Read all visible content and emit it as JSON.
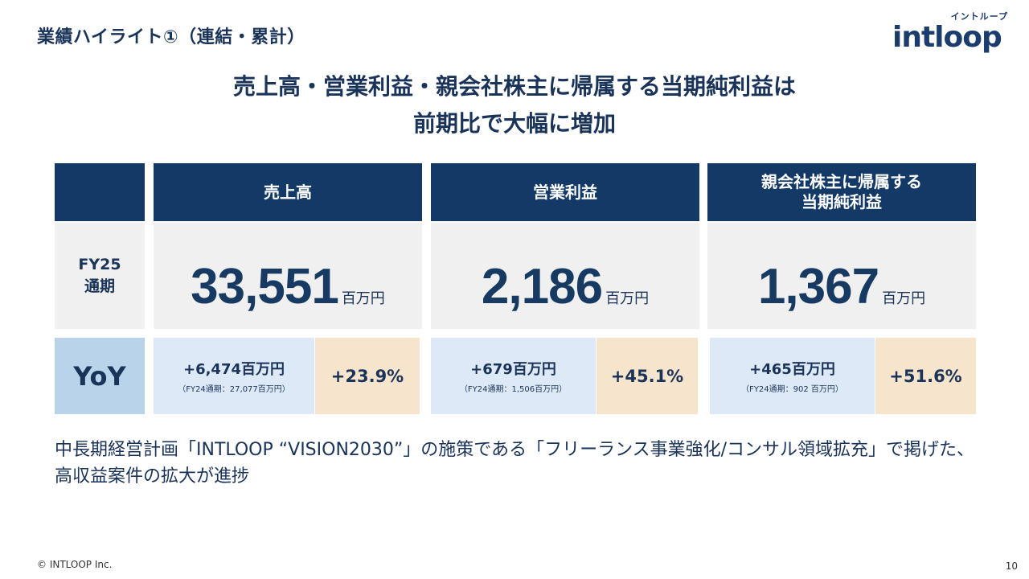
{
  "header": {
    "title": "業績ハイライト①（連結・累計）"
  },
  "logo": {
    "kana": "イントループ",
    "word": "intloop"
  },
  "headline": {
    "line1": "売上高・営業利益・親会社株主に帰属する当期純利益は",
    "line2": "前期比で大幅に増加"
  },
  "table": {
    "columns": [
      {
        "header": "売上高",
        "value": "33,551",
        "unit": "百万円",
        "diff": "+6,474百万円",
        "prior": "（FY24通期：27,077百万円）",
        "pct": "+23.9%"
      },
      {
        "header": "営業利益",
        "value": "2,186",
        "unit": "百万円",
        "diff": "+679百万円",
        "prior": "（FY24通期：1,506百万円）",
        "pct": "+45.1%"
      },
      {
        "header_line1": "親会社株主に帰属する",
        "header_line2": "当期純利益",
        "value": "1,367",
        "unit": "百万円",
        "diff": "+465百万円",
        "prior": "（FY24通期：902 百万円）",
        "pct": "+51.6%"
      }
    ],
    "period_line1": "FY25",
    "period_line2": "通期",
    "yoy_label": "YoY"
  },
  "note": "中長期経営計画「INTLOOP “VISION2030”」の施策である「フリーランス事業強化/コンサル領域拡充」で掲げた、高収益案件の拡大が進捗",
  "footer": {
    "copyright": "© INTLOOP  Inc.",
    "page": "10"
  }
}
